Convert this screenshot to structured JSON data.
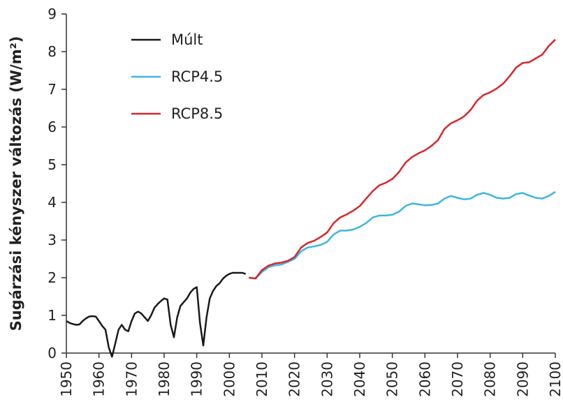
{
  "chart_data": {
    "type": "line",
    "y_label": "Sugárzási kényszer változás (W/m²)",
    "xlim": [
      1950,
      2100
    ],
    "xticks": [
      1950,
      1960,
      1970,
      1980,
      1990,
      2000,
      2010,
      2020,
      2030,
      2040,
      2050,
      2060,
      2070,
      2080,
      2090,
      2100
    ],
    "ylim": [
      0,
      9
    ],
    "yticks": [
      0,
      1,
      2,
      3,
      4,
      5,
      6,
      7,
      8,
      9
    ],
    "grid": false,
    "legend": "upper left",
    "series": [
      {
        "name": "Múlt",
        "color": "#1a1a1a",
        "x": [
          1950,
          1951,
          1952,
          1953,
          1954,
          1955,
          1956,
          1957,
          1958,
          1959,
          1960,
          1961,
          1962,
          1963,
          1964,
          1965,
          1966,
          1967,
          1968,
          1969,
          1970,
          1971,
          1972,
          1973,
          1974,
          1975,
          1976,
          1977,
          1978,
          1979,
          1980,
          1981,
          1982,
          1983,
          1984,
          1985,
          1986,
          1987,
          1988,
          1989,
          1990,
          1991,
          1992,
          1993,
          1994,
          1995,
          1996,
          1997,
          1998,
          1999,
          2000,
          2001,
          2002,
          2003,
          2004,
          2005
        ],
        "values": [
          0.85,
          0.8,
          0.77,
          0.75,
          0.76,
          0.85,
          0.92,
          0.97,
          0.98,
          0.97,
          0.85,
          0.72,
          0.62,
          0.15,
          -0.1,
          0.25,
          0.62,
          0.75,
          0.62,
          0.58,
          0.85,
          1.05,
          1.1,
          1.05,
          0.95,
          0.85,
          1.0,
          1.2,
          1.3,
          1.38,
          1.45,
          1.42,
          0.75,
          0.42,
          0.95,
          1.25,
          1.35,
          1.45,
          1.6,
          1.7,
          1.75,
          0.8,
          0.2,
          0.95,
          1.45,
          1.65,
          1.78,
          1.85,
          1.97,
          2.05,
          2.1,
          2.13,
          2.13,
          2.13,
          2.13,
          2.1
        ]
      },
      {
        "name": "RCP4.5",
        "color": "#3bb6e3",
        "x": [
          2006,
          2008,
          2010,
          2012,
          2014,
          2016,
          2018,
          2020,
          2022,
          2024,
          2026,
          2028,
          2030,
          2032,
          2034,
          2036,
          2038,
          2040,
          2042,
          2044,
          2046,
          2048,
          2050,
          2052,
          2054,
          2056,
          2058,
          2060,
          2062,
          2064,
          2066,
          2068,
          2070,
          2072,
          2074,
          2076,
          2078,
          2080,
          2082,
          2084,
          2086,
          2088,
          2090,
          2092,
          2094,
          2096,
          2098,
          2100
        ],
        "values": [
          2.0,
          1.98,
          2.15,
          2.28,
          2.33,
          2.35,
          2.42,
          2.5,
          2.7,
          2.8,
          2.83,
          2.87,
          2.95,
          3.15,
          3.25,
          3.25,
          3.28,
          3.35,
          3.45,
          3.6,
          3.65,
          3.65,
          3.67,
          3.75,
          3.9,
          3.97,
          3.95,
          3.92,
          3.93,
          3.97,
          4.1,
          4.17,
          4.12,
          4.08,
          4.1,
          4.2,
          4.25,
          4.2,
          4.12,
          4.1,
          4.12,
          4.22,
          4.25,
          4.18,
          4.12,
          4.1,
          4.17,
          4.28
        ]
      },
      {
        "name": "RCP8.5",
        "color": "#d7262b",
        "x": [
          2006,
          2008,
          2010,
          2012,
          2014,
          2016,
          2018,
          2020,
          2022,
          2024,
          2026,
          2028,
          2030,
          2032,
          2034,
          2036,
          2038,
          2040,
          2042,
          2044,
          2046,
          2048,
          2050,
          2052,
          2054,
          2056,
          2058,
          2060,
          2062,
          2064,
          2066,
          2068,
          2070,
          2072,
          2074,
          2076,
          2078,
          2080,
          2082,
          2084,
          2086,
          2088,
          2090,
          2092,
          2094,
          2096,
          2098,
          2100
        ],
        "values": [
          2.0,
          1.98,
          2.2,
          2.32,
          2.38,
          2.4,
          2.45,
          2.55,
          2.8,
          2.92,
          2.98,
          3.08,
          3.2,
          3.45,
          3.6,
          3.68,
          3.78,
          3.9,
          4.1,
          4.3,
          4.45,
          4.52,
          4.62,
          4.8,
          5.05,
          5.2,
          5.3,
          5.38,
          5.5,
          5.65,
          5.95,
          6.1,
          6.18,
          6.28,
          6.45,
          6.7,
          6.85,
          6.92,
          7.02,
          7.15,
          7.35,
          7.58,
          7.7,
          7.72,
          7.82,
          7.92,
          8.15,
          8.32
        ]
      }
    ]
  }
}
